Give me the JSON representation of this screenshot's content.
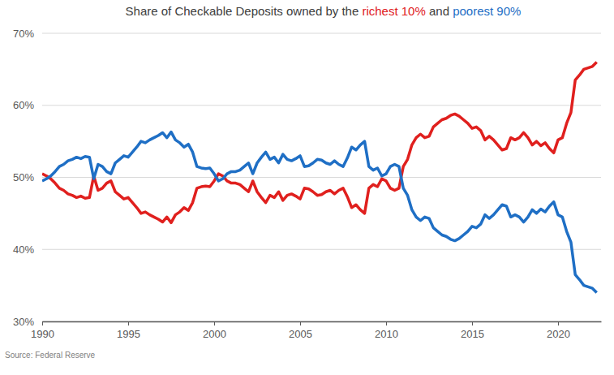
{
  "chart_data": {
    "type": "line",
    "title": "Share of Checkable Deposits owned by the richest 10% and poorest 90%",
    "source": "Source: Federal Reserve",
    "x": [
      1990,
      1990.25,
      1990.5,
      1990.75,
      1991,
      1991.25,
      1991.5,
      1991.75,
      1992,
      1992.25,
      1992.5,
      1992.75,
      1993,
      1993.25,
      1993.5,
      1993.75,
      1994,
      1994.25,
      1994.5,
      1994.75,
      1995,
      1995.25,
      1995.5,
      1995.75,
      1996,
      1996.25,
      1996.5,
      1996.75,
      1997,
      1997.25,
      1997.5,
      1997.75,
      1998,
      1998.25,
      1998.5,
      1998.75,
      1999,
      1999.25,
      1999.5,
      1999.75,
      2000,
      2000.25,
      2000.5,
      2000.75,
      2001,
      2001.25,
      2001.5,
      2001.75,
      2002,
      2002.25,
      2002.5,
      2002.75,
      2003,
      2003.25,
      2003.5,
      2003.75,
      2004,
      2004.25,
      2004.5,
      2004.75,
      2005,
      2005.25,
      2005.5,
      2005.75,
      2006,
      2006.25,
      2006.5,
      2006.75,
      2007,
      2007.25,
      2007.5,
      2007.75,
      2008,
      2008.25,
      2008.5,
      2008.75,
      2009,
      2009.25,
      2009.5,
      2009.75,
      2010,
      2010.25,
      2010.5,
      2010.75,
      2011,
      2011.25,
      2011.5,
      2011.75,
      2012,
      2012.25,
      2012.5,
      2012.75,
      2013,
      2013.25,
      2013.5,
      2013.75,
      2014,
      2014.25,
      2014.5,
      2014.75,
      2015,
      2015.25,
      2015.5,
      2015.75,
      2016,
      2016.25,
      2016.5,
      2016.75,
      2017,
      2017.25,
      2017.5,
      2017.75,
      2018,
      2018.25,
      2018.5,
      2018.75,
      2019,
      2019.25,
      2019.5,
      2019.75,
      2020,
      2020.25,
      2020.5,
      2020.75,
      2021,
      2021.25,
      2021.5,
      2021.75,
      2022,
      2022.25
    ],
    "series": [
      {
        "name": "richest 10%",
        "color": "#e0201e",
        "values": [
          50.5,
          50.2,
          49.8,
          49.2,
          48.5,
          48.2,
          47.7,
          47.5,
          47.2,
          47.4,
          47.1,
          47.2,
          50.2,
          48.2,
          48.5,
          49.2,
          49.5,
          48.0,
          47.5,
          47.0,
          47.2,
          46.5,
          45.8,
          45.0,
          45.2,
          44.8,
          44.5,
          44.2,
          43.8,
          44.5,
          43.7,
          44.8,
          45.2,
          45.8,
          45.4,
          46.5,
          48.5,
          48.7,
          48.8,
          48.7,
          49.5,
          50.5,
          50.2,
          49.5,
          49.2,
          49.2,
          49.0,
          48.5,
          48.0,
          49.5,
          48.0,
          47.2,
          46.5,
          47.5,
          47.2,
          48.0,
          46.8,
          47.5,
          47.7,
          47.4,
          47.0,
          48.5,
          48.4,
          48.0,
          47.5,
          47.6,
          48.0,
          48.2,
          47.7,
          48.2,
          48.5,
          47.3,
          45.8,
          46.2,
          45.5,
          45.0,
          48.5,
          49.0,
          48.7,
          49.8,
          49.5,
          48.5,
          48.2,
          48.5,
          51.5,
          52.5,
          54.5,
          55.5,
          56.0,
          55.5,
          55.7,
          57.0,
          57.5,
          58.0,
          58.2,
          58.6,
          58.8,
          58.5,
          58.0,
          57.5,
          56.8,
          57.0,
          56.5,
          55.2,
          55.7,
          55.2,
          54.5,
          53.8,
          54.0,
          55.5,
          55.2,
          55.5,
          56.2,
          55.5,
          54.5,
          55.0,
          54.4,
          54.8,
          54.0,
          53.4,
          55.2,
          55.5,
          57.5,
          59.0,
          63.5,
          64.2,
          65.0,
          65.2,
          65.4,
          66.0
        ]
      },
      {
        "name": "poorest 90%",
        "color": "#1f6fc5",
        "values": [
          49.5,
          49.8,
          50.2,
          50.8,
          51.5,
          51.8,
          52.3,
          52.5,
          52.8,
          52.6,
          52.9,
          52.8,
          49.8,
          51.8,
          51.5,
          50.8,
          50.5,
          52.0,
          52.5,
          53.0,
          52.8,
          53.5,
          54.2,
          55.0,
          54.8,
          55.2,
          55.5,
          55.8,
          56.2,
          55.5,
          56.3,
          55.2,
          54.8,
          54.2,
          54.6,
          53.5,
          51.5,
          51.3,
          51.2,
          51.3,
          50.5,
          49.5,
          49.8,
          50.5,
          50.8,
          50.8,
          51.0,
          51.5,
          52.0,
          50.5,
          52.0,
          52.8,
          53.5,
          52.5,
          52.8,
          52.0,
          53.2,
          52.5,
          52.3,
          52.6,
          53.0,
          51.5,
          51.6,
          52.0,
          52.5,
          52.4,
          52.0,
          51.8,
          52.3,
          51.8,
          51.5,
          52.7,
          54.2,
          53.8,
          54.5,
          55.0,
          51.5,
          51.0,
          51.3,
          50.2,
          50.5,
          51.5,
          51.8,
          51.5,
          48.5,
          47.5,
          45.5,
          44.5,
          44.0,
          44.5,
          44.3,
          43.0,
          42.5,
          42.0,
          41.8,
          41.4,
          41.2,
          41.5,
          42.0,
          42.5,
          43.2,
          43.0,
          43.5,
          44.8,
          44.3,
          44.8,
          45.5,
          46.2,
          46.0,
          44.5,
          44.8,
          44.5,
          43.8,
          44.5,
          45.5,
          45.0,
          45.6,
          45.2,
          46.0,
          46.6,
          44.8,
          44.5,
          42.5,
          41.0,
          36.5,
          35.8,
          35.0,
          34.8,
          34.6,
          34.0
        ]
      }
    ],
    "xlim": [
      1990,
      2022.5
    ],
    "xticks": [
      1990,
      1995,
      2000,
      2005,
      2010,
      2015,
      2020
    ],
    "ylim": [
      30,
      70
    ],
    "yticks": [
      {
        "value": 30,
        "label": "30%"
      },
      {
        "value": 40,
        "label": "40%"
      },
      {
        "value": 50,
        "label": "50%"
      },
      {
        "value": 60,
        "label": "60%"
      },
      {
        "value": 70,
        "label": "70%"
      }
    ],
    "grid": true
  }
}
